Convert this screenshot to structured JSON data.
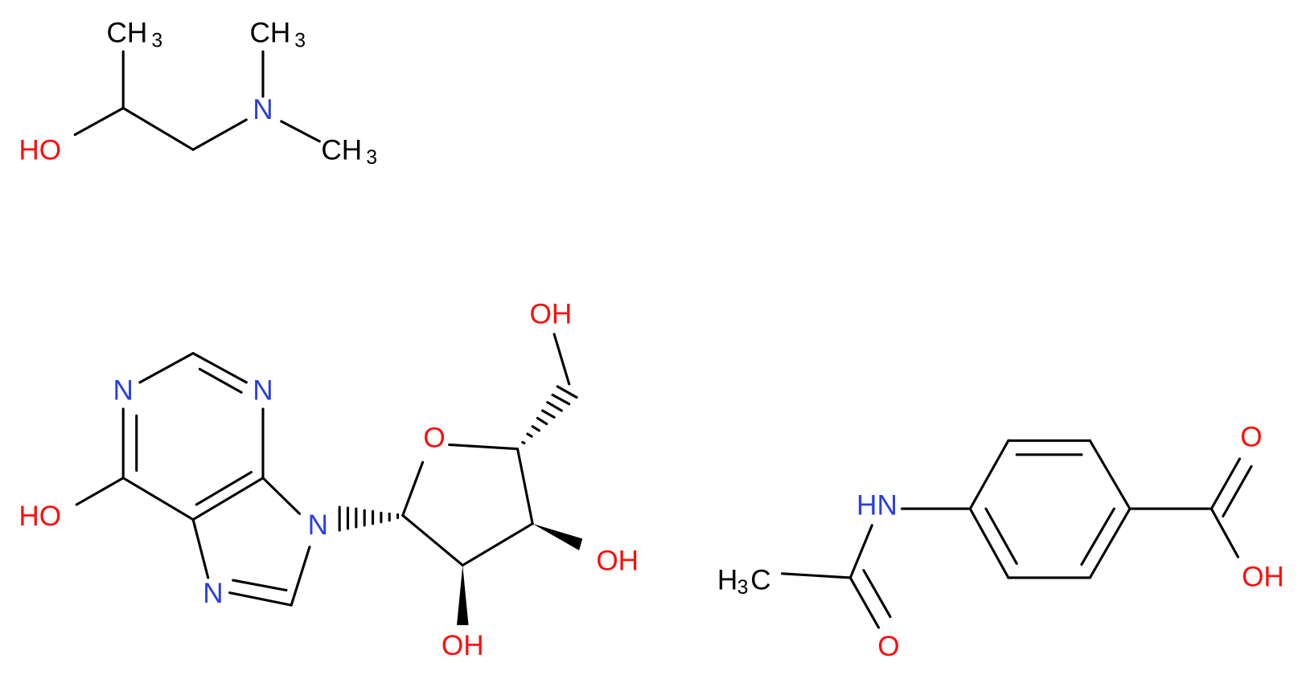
{
  "molecules": [
    {
      "labels": [
        {
          "text": "CH",
          "sub": "3"
        },
        {
          "text": "HO"
        },
        {
          "text": "N"
        },
        {
          "text": "CH",
          "sub": "3"
        },
        {
          "text": "CH",
          "sub": "3"
        }
      ]
    },
    {
      "labels": [
        {
          "text": "N"
        },
        {
          "text": "N"
        },
        {
          "text": "HO"
        },
        {
          "text": "N"
        },
        {
          "text": "N"
        },
        {
          "text": "O"
        },
        {
          "text": "OH"
        },
        {
          "text": "OH"
        },
        {
          "text": "OH"
        }
      ]
    },
    {
      "labels": [
        {
          "text": "HN"
        },
        {
          "text": "H",
          "sub": "3",
          "after": "C"
        },
        {
          "text": "O"
        },
        {
          "text": "O"
        },
        {
          "text": "OH"
        }
      ]
    }
  ]
}
